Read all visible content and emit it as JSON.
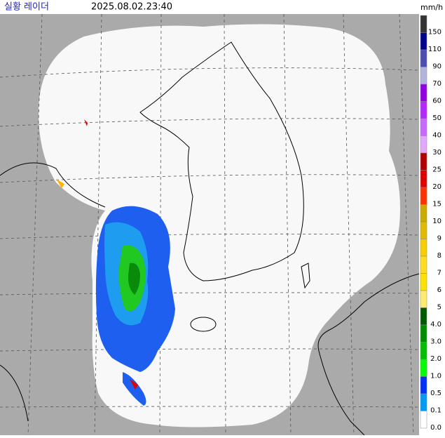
{
  "header": {
    "title": "실황 레이더",
    "timestamp": "2025.08.02.23:40"
  },
  "legend": {
    "unit": "mm/h",
    "items": [
      {
        "label": "150",
        "color": "#333333"
      },
      {
        "label": "110",
        "color": "#000390"
      },
      {
        "label": "90",
        "color": "#4c4eb1"
      },
      {
        "label": "70",
        "color": "#b3b4de"
      },
      {
        "label": "60",
        "color": "#9300e4"
      },
      {
        "label": "50",
        "color": "#b329ff"
      },
      {
        "label": "40",
        "color": "#c969ff"
      },
      {
        "label": "30",
        "color": "#e0a9ff"
      },
      {
        "label": "25",
        "color": "#b40000"
      },
      {
        "label": "20",
        "color": "#e00000"
      },
      {
        "label": "15",
        "color": "#ff3300"
      },
      {
        "label": "10",
        "color": "#ccaa00"
      },
      {
        "label": "9",
        "color": "#e0b900"
      },
      {
        "label": "8",
        "color": "#f9cd00"
      },
      {
        "label": "7",
        "color": "#ffdc1f"
      },
      {
        "label": "6",
        "color": "#ffe100"
      },
      {
        "label": "5",
        "color": "#ffea6e"
      },
      {
        "label": "4.0",
        "color": "#005a00"
      },
      {
        "label": "3.0",
        "color": "#008c00"
      },
      {
        "label": "2.0",
        "color": "#00be00"
      },
      {
        "label": "1.0",
        "color": "#00ff00"
      },
      {
        "label": "0.5",
        "color": "#0033f5"
      },
      {
        "label": "0.1",
        "color": "#009bf5"
      },
      {
        "label": "0.0",
        "color": "#ffffff"
      }
    ]
  }
}
